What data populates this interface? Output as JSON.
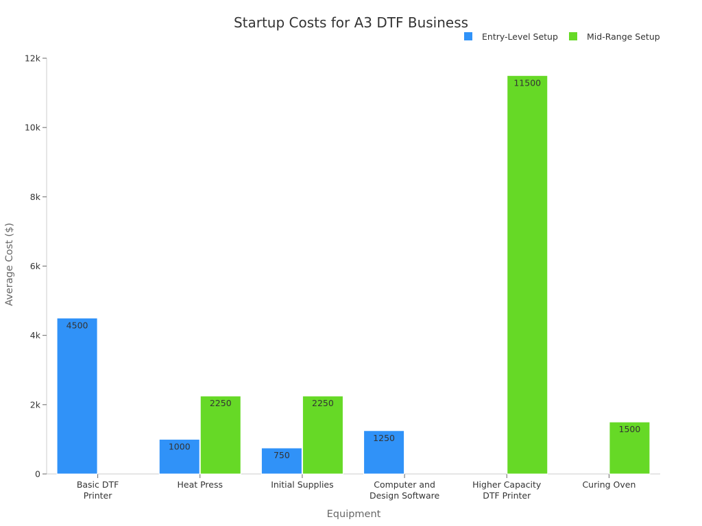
{
  "chart_data": {
    "type": "bar",
    "title": "Startup Costs for A3 DTF Business",
    "xlabel": "Equipment",
    "ylabel": "Average Cost ($)",
    "categories": [
      [
        "Basic DTF",
        "Printer"
      ],
      [
        "Heat Press"
      ],
      [
        "Initial Supplies"
      ],
      [
        "Computer and",
        "Design Software"
      ],
      [
        "Higher Capacity",
        "DTF Printer"
      ],
      [
        "Curing Oven"
      ]
    ],
    "series": [
      {
        "name": "Entry-Level Setup",
        "color": "#3092f8",
        "values": [
          4500,
          1000,
          750,
          1250,
          null,
          null
        ]
      },
      {
        "name": "Mid-Range Setup",
        "color": "#66d926",
        "values": [
          null,
          2250,
          2250,
          null,
          11500,
          1500
        ]
      }
    ],
    "ylim": [
      0,
      12000
    ],
    "yticks": [
      0,
      2000,
      4000,
      6000,
      8000,
      10000,
      12000
    ],
    "ytick_labels": [
      "0",
      "2k",
      "4k",
      "6k",
      "8k",
      "10k",
      "12k"
    ],
    "legend_position": "top-right",
    "grid": false
  }
}
